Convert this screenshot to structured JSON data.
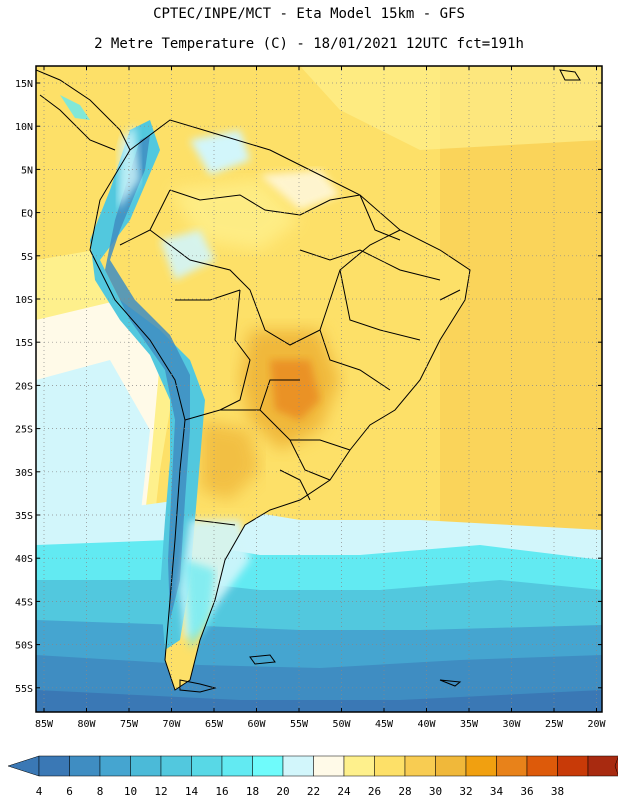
{
  "titles": {
    "line1": "CPTEC/INPE/MCT -  Eta Model 15km - GFS",
    "line2": "2 Metre Temperature (C) - 18/01/2021 12UTC fct=191h"
  },
  "lat_labels": [
    "15N",
    "10N",
    "5N",
    "EQ",
    "5S",
    "10S",
    "15S",
    "20S",
    "25S",
    "30S",
    "35S",
    "40S",
    "45S",
    "50S",
    "55S"
  ],
  "lon_labels": [
    "85W",
    "80W",
    "75W",
    "70W",
    "65W",
    "60W",
    "55W",
    "50W",
    "45W",
    "40W",
    "35W",
    "30W",
    "25W",
    "20W"
  ],
  "colorbar": {
    "labels": [
      "4",
      "6",
      "8",
      "10",
      "12",
      "14",
      "16",
      "18",
      "20",
      "22",
      "24",
      "26",
      "28",
      "30",
      "32",
      "34",
      "36",
      "38"
    ],
    "colors": [
      "#3a78b5",
      "#3f8dc2",
      "#45a5d0",
      "#4bbad8",
      "#52c8de",
      "#58d8e6",
      "#62eaf2",
      "#6ffbfb",
      "#d2f6fb",
      "#fffae8",
      "#fef08c",
      "#fde068",
      "#f8cc52",
      "#f0b83a",
      "#f1a010",
      "#e8821a",
      "#dd5a0a",
      "#c83a08",
      "#a82a10"
    ],
    "left_arrow_color": "#3a78b5",
    "right_arrow_color": "#a82a10"
  }
}
